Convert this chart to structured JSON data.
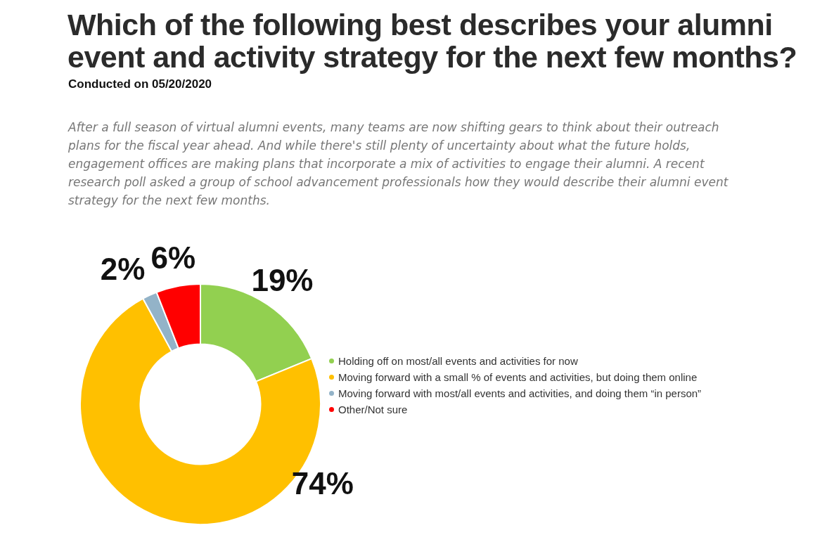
{
  "chart_data": {
    "type": "donut",
    "title": "Which of the following best describes your alumni event and activity strategy for the next few months?",
    "subtitle": "Conducted on 05/20/2020",
    "annotations": [
      "After a full season of virtual alumni events, many teams are now shifting gears to think about their outreach plans for the fiscal year ahead. And while there's still plenty of uncertainty about what the future holds, engagement offices are making plans that incorporate a mix of activities to engage their alumni. A recent research poll asked a group of school advancement professionals how they would describe their alumni event strategy for the next few months."
    ],
    "categories": [
      "Holding off on most/all events and activities for now",
      "Moving forward with a small % of events and activities, but doing them online",
      "Moving forward with most/all events and activities, and doing them “in person”",
      "Other/Not sure"
    ],
    "values": [
      19,
      74,
      2,
      6
    ],
    "colors": [
      "#92d050",
      "#ffc000",
      "#93b3c8",
      "#ff0000"
    ],
    "value_labels": [
      "19%",
      "74%",
      "2%",
      "6%"
    ],
    "legend": "right"
  }
}
